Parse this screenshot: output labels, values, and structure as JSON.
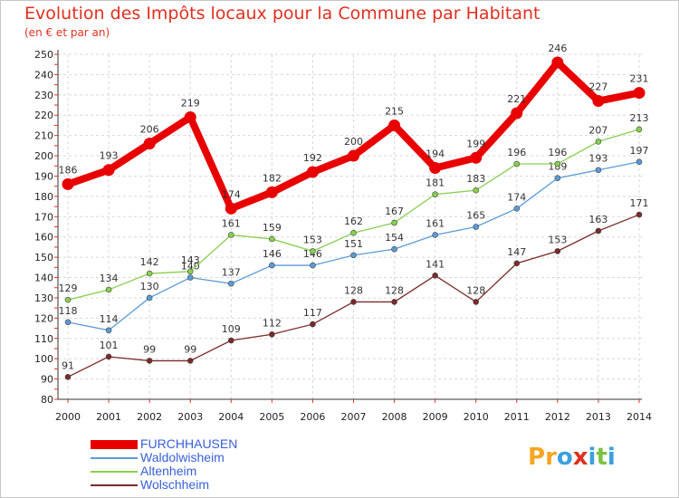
{
  "chart_data": {
    "type": "line",
    "title": "Evolution des Impôts locaux pour la Commune par Habitant",
    "subtitle": "(en € et par an)",
    "xlabel": "",
    "ylabel": "",
    "ylim": [
      80,
      250
    ],
    "y_ticks": [
      80,
      90,
      100,
      110,
      120,
      130,
      140,
      150,
      160,
      170,
      180,
      190,
      200,
      210,
      220,
      230,
      240,
      250
    ],
    "categories": [
      "2000",
      "2001",
      "2002",
      "2003",
      "2004",
      "2005",
      "2006",
      "2007",
      "2008",
      "2009",
      "2010",
      "2011",
      "2012",
      "2013",
      "2014"
    ],
    "grid": true,
    "legend_position": "bottom-left",
    "series": [
      {
        "name": "FURCHHAUSEN",
        "color": "#e80000",
        "emphasis": true,
        "values": [
          186,
          193,
          206,
          219,
          174,
          182,
          192,
          200,
          215,
          194,
          199,
          221,
          246,
          227,
          231
        ],
        "labels": [
          "186",
          "193",
          "206",
          "219",
          "174",
          "182",
          "192",
          "200",
          "215",
          "194",
          "199",
          "221",
          "246",
          "227",
          "231"
        ]
      },
      {
        "name": "Waldolwisheim",
        "color": "#5b9bd5",
        "values": [
          118,
          114,
          130,
          140,
          137,
          146,
          146,
          151,
          154,
          161,
          165,
          174,
          189,
          193,
          197
        ],
        "labels": [
          "118",
          "114",
          "130",
          "140",
          "137",
          "146",
          "146",
          "151",
          "154",
          "161",
          "165",
          "174",
          "189",
          "193",
          "197"
        ]
      },
      {
        "name": "Altenheim",
        "color": "#88d050",
        "values": [
          129,
          134,
          142,
          143,
          161,
          159,
          153,
          162,
          167,
          181,
          183,
          196,
          196,
          207,
          213
        ],
        "labels": [
          "129",
          "134",
          "142",
          "143",
          "161",
          "159",
          "153",
          "162",
          "167",
          "181",
          "183",
          "196",
          "196",
          "207",
          "213"
        ]
      },
      {
        "name": "Wolschheim",
        "color": "#7a2a2a",
        "values": [
          91,
          101,
          99,
          99,
          109,
          112,
          117,
          128,
          128,
          141,
          128,
          147,
          153,
          163,
          171
        ],
        "labels": [
          "91",
          "101",
          "99",
          "99",
          "109",
          "112",
          "117",
          "128",
          "128",
          "141",
          "128",
          "147",
          "153",
          "163",
          "171"
        ]
      }
    ]
  },
  "logo": {
    "text": "Proxiti",
    "letters": [
      "P",
      "r",
      "o",
      "x",
      "i",
      "t",
      "i"
    ],
    "colors": [
      "#f5a623",
      "#f5a623",
      "#3aa0e0",
      "#e03020",
      "#3aa0e0",
      "#7cc242",
      "#3aa0e0"
    ]
  }
}
